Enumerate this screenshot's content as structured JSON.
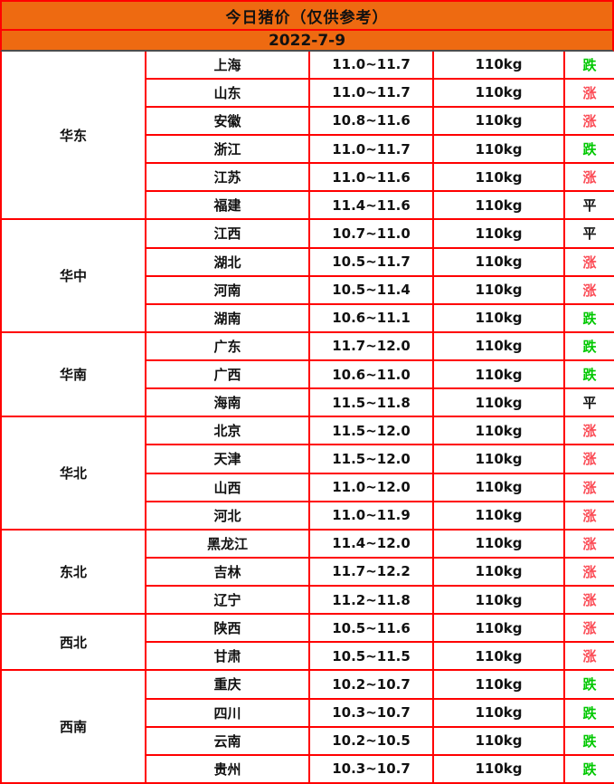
{
  "header": {
    "title": "今日猪价（仅供参考）",
    "date": "2022-7-9"
  },
  "colors": {
    "header_bg": "#EE6A11",
    "border_red": "#FF0000",
    "header_divider_dark": "#4D4D4D",
    "trend_up": "#FB4B55",
    "trend_down": "#00C800",
    "trend_flat": "#111111"
  },
  "weight_unit": "110kg",
  "trend_legend": {
    "up": "涨",
    "down": "跌",
    "flat": "平"
  },
  "chart_data": {
    "type": "table",
    "title": "今日猪价（仅供参考）",
    "subtitle": "2022-7-9",
    "regions": [
      {
        "region": "华东",
        "rows": [
          {
            "province": "上海",
            "price": "11.0~11.7",
            "weight": "110kg",
            "trend": "跌",
            "direction": "down"
          },
          {
            "province": "山东",
            "price": "11.0~11.7",
            "weight": "110kg",
            "trend": "涨",
            "direction": "up"
          },
          {
            "province": "安徽",
            "price": "10.8~11.6",
            "weight": "110kg",
            "trend": "涨",
            "direction": "up"
          },
          {
            "province": "浙江",
            "price": "11.0~11.7",
            "weight": "110kg",
            "trend": "跌",
            "direction": "down"
          },
          {
            "province": "江苏",
            "price": "11.0~11.6",
            "weight": "110kg",
            "trend": "涨",
            "direction": "up"
          },
          {
            "province": "福建",
            "price": "11.4~11.6",
            "weight": "110kg",
            "trend": "平",
            "direction": "flat"
          }
        ]
      },
      {
        "region": "华中",
        "rows": [
          {
            "province": "江西",
            "price": "10.7~11.0",
            "weight": "110kg",
            "trend": "平",
            "direction": "flat"
          },
          {
            "province": "湖北",
            "price": "10.5~11.7",
            "weight": "110kg",
            "trend": "涨",
            "direction": "up"
          },
          {
            "province": "河南",
            "price": "10.5~11.4",
            "weight": "110kg",
            "trend": "涨",
            "direction": "up"
          },
          {
            "province": "湖南",
            "price": "10.6~11.1",
            "weight": "110kg",
            "trend": "跌",
            "direction": "down"
          }
        ]
      },
      {
        "region": "华南",
        "rows": [
          {
            "province": "广东",
            "price": "11.7~12.0",
            "weight": "110kg",
            "trend": "跌",
            "direction": "down"
          },
          {
            "province": "广西",
            "price": "10.6~11.0",
            "weight": "110kg",
            "trend": "跌",
            "direction": "down"
          },
          {
            "province": "海南",
            "price": "11.5~11.8",
            "weight": "110kg",
            "trend": "平",
            "direction": "flat"
          }
        ]
      },
      {
        "region": "华北",
        "rows": [
          {
            "province": "北京",
            "price": "11.5~12.0",
            "weight": "110kg",
            "trend": "涨",
            "direction": "up"
          },
          {
            "province": "天津",
            "price": "11.5~12.0",
            "weight": "110kg",
            "trend": "涨",
            "direction": "up"
          },
          {
            "province": "山西",
            "price": "11.0~12.0",
            "weight": "110kg",
            "trend": "涨",
            "direction": "up"
          },
          {
            "province": "河北",
            "price": "11.0~11.9",
            "weight": "110kg",
            "trend": "涨",
            "direction": "up"
          }
        ]
      },
      {
        "region": "东北",
        "rows": [
          {
            "province": "黑龙江",
            "price": "11.4~12.0",
            "weight": "110kg",
            "trend": "涨",
            "direction": "up"
          },
          {
            "province": "吉林",
            "price": "11.7~12.2",
            "weight": "110kg",
            "trend": "涨",
            "direction": "up"
          },
          {
            "province": "辽宁",
            "price": "11.2~11.8",
            "weight": "110kg",
            "trend": "涨",
            "direction": "up"
          }
        ]
      },
      {
        "region": "西北",
        "rows": [
          {
            "province": "陕西",
            "price": "10.5~11.6",
            "weight": "110kg",
            "trend": "涨",
            "direction": "up"
          },
          {
            "province": "甘肃",
            "price": "10.5~11.5",
            "weight": "110kg",
            "trend": "涨",
            "direction": "up"
          }
        ]
      },
      {
        "region": "西南",
        "rows": [
          {
            "province": "重庆",
            "price": "10.2~10.7",
            "weight": "110kg",
            "trend": "跌",
            "direction": "down"
          },
          {
            "province": "四川",
            "price": "10.3~10.7",
            "weight": "110kg",
            "trend": "跌",
            "direction": "down"
          },
          {
            "province": "云南",
            "price": "10.2~10.5",
            "weight": "110kg",
            "trend": "跌",
            "direction": "down"
          },
          {
            "province": "贵州",
            "price": "10.3~10.7",
            "weight": "110kg",
            "trend": "跌",
            "direction": "down"
          }
        ]
      }
    ]
  }
}
